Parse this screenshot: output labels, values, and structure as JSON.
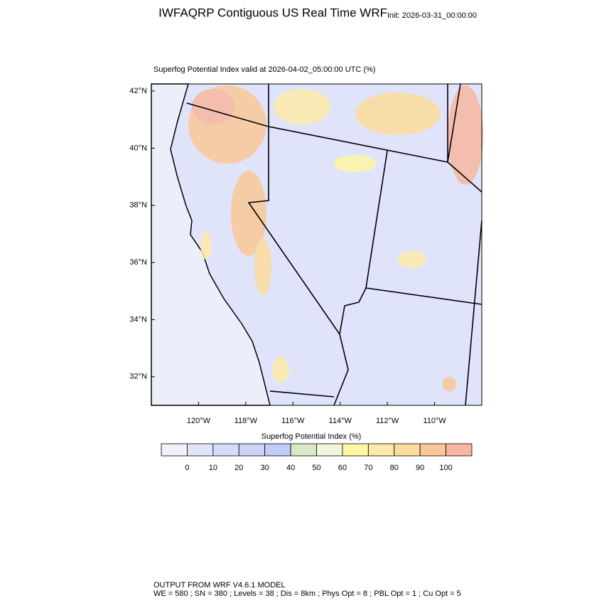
{
  "header": {
    "title": "IWFAQRP Contiguous US Real Time WRF",
    "init": "Init: 2026-03-31_00:00:00"
  },
  "map": {
    "subtitle": "Superfog Potential Index valid at 2026-04-02_05:00:00 UTC   (%)",
    "xlim": [
      -122,
      -108
    ],
    "ylim": [
      31,
      42.25
    ],
    "lat_ticks": [
      {
        "value": 42,
        "label": "42°N"
      },
      {
        "value": 40,
        "label": "40°N"
      },
      {
        "value": 38,
        "label": "38°N"
      },
      {
        "value": 36,
        "label": "36°N"
      },
      {
        "value": 34,
        "label": "34°N"
      },
      {
        "value": 32,
        "label": "32°N"
      }
    ],
    "lon_ticks": [
      {
        "value": -120,
        "label": "120°W"
      },
      {
        "value": -118,
        "label": "118°W"
      },
      {
        "value": -116,
        "label": "116°W"
      },
      {
        "value": -114,
        "label": "114°W"
      },
      {
        "value": -112,
        "label": "112°W"
      },
      {
        "value": -110,
        "label": "110°W"
      }
    ]
  },
  "colorbar": {
    "title": "Superfog Potential Index  (%)",
    "colors": [
      "#f0f1f9",
      "#e1e5f9",
      "#d4dcf9",
      "#cad3f7",
      "#c3ccf8",
      "#d9e8c6",
      "#f0f7dc",
      "#fdf7a3",
      "#fdeaa9",
      "#fbdc9c",
      "#fac898",
      "#f8b7a0"
    ],
    "labels": [
      "0",
      "10",
      "20",
      "30",
      "40",
      "50",
      "60",
      "70",
      "80",
      "90",
      "100"
    ]
  },
  "footer": {
    "line1": "OUTPUT FROM WRF V4.6.1 MODEL",
    "line2": "WE = 580 ; SN = 380 ; Levels = 38 ; Dis = 8km ; Phys Opt = 8 ; PBL Opt = 1 ; Cu Opt = 5"
  }
}
